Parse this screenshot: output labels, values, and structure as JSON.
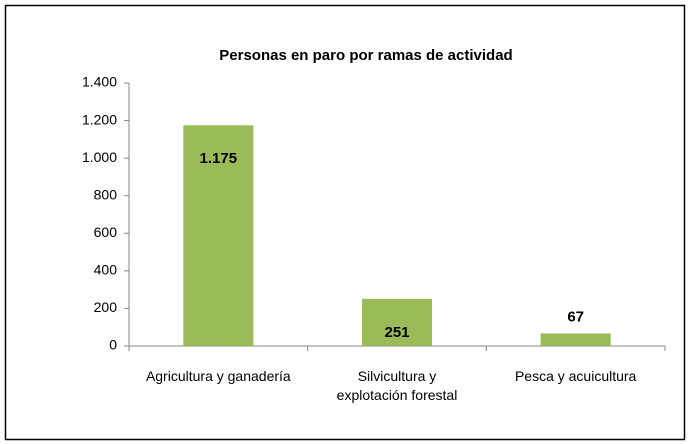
{
  "chart_data": {
    "type": "bar",
    "title": "Personas en paro por ramas de actividad",
    "categories": [
      "Agricultura y ganadería",
      "Silvicultura y explotación forestal",
      "Pesca y acuicultura"
    ],
    "values": [
      1175,
      251,
      67
    ],
    "value_labels": [
      "1.175",
      "251",
      "67"
    ],
    "color": "#9bbb59",
    "ylim": [
      0,
      1400
    ],
    "yticks": [
      0,
      200,
      400,
      600,
      800,
      {
        "value": 1000,
        "label": "1.000"
      },
      {
        "value": 1200,
        "label": "1.200"
      },
      {
        "value": 1400,
        "label": "1.400"
      }
    ]
  }
}
